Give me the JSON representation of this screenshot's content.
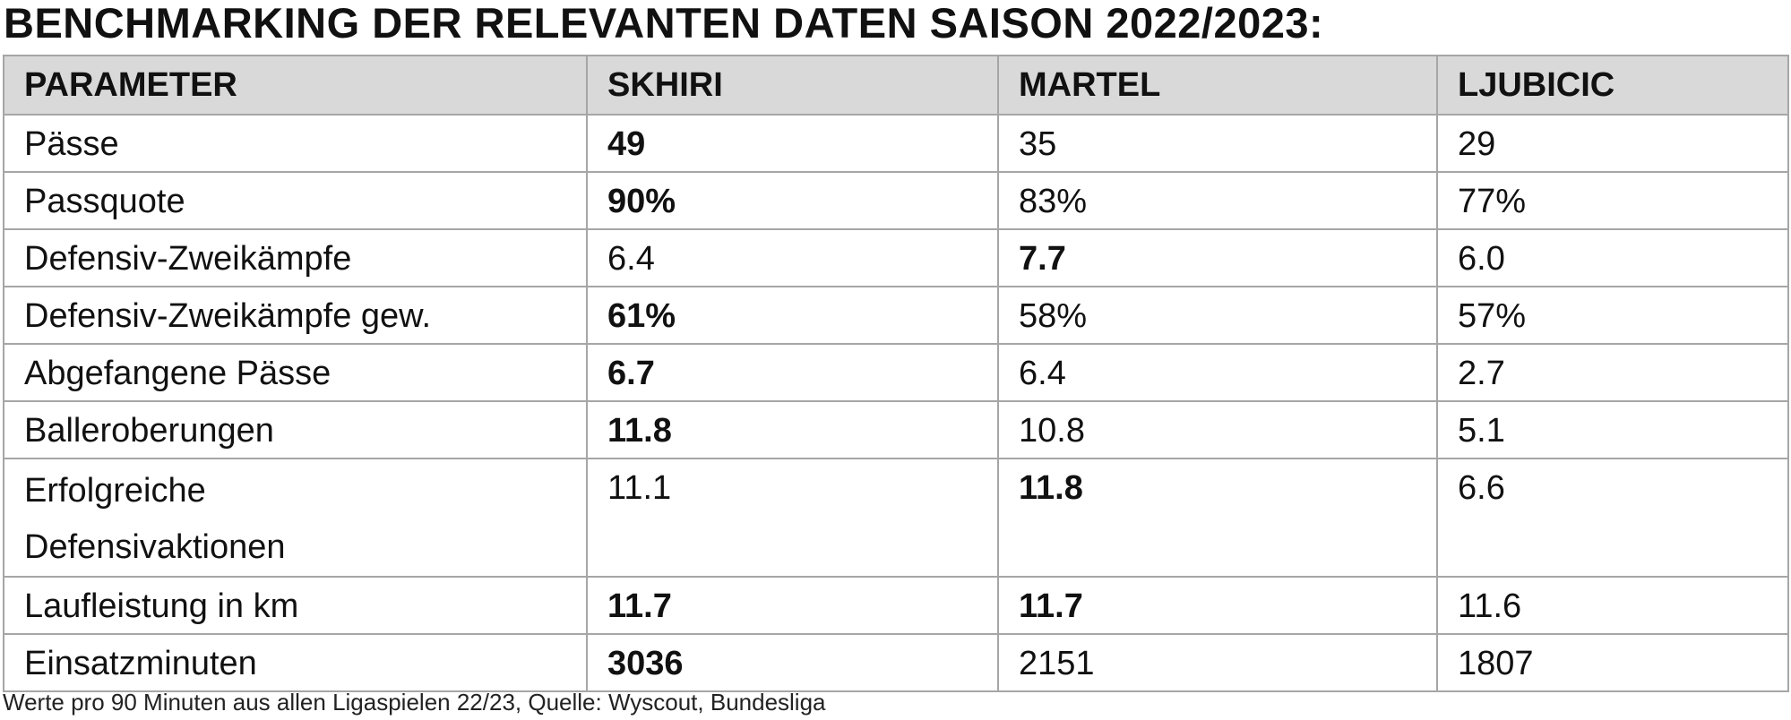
{
  "header": {
    "title": "BENCHMARKING DER RELEVANTEN DATEN SAISON 2022/2023:"
  },
  "table": {
    "columns": [
      "PARAMETER",
      "SKHIRI",
      "MARTEL",
      "LJUBICIC"
    ],
    "rows": [
      [
        "Pässe",
        "49",
        "35",
        "29"
      ],
      [
        "Passquote",
        "90%",
        "83%",
        "77%"
      ],
      [
        "Defensiv-Zweikämpfe",
        "6.4",
        "7.7",
        "6.0"
      ],
      [
        "Defensiv-Zweikämpfe gew.",
        "61%",
        "58%",
        "57%"
      ],
      [
        "Abgefangene Pässe",
        "6.7",
        "6.4",
        "2.7"
      ],
      [
        "Balleroberungen",
        "11.8",
        "10.8",
        "5.1"
      ],
      [
        "Erfolgreiche Defensivaktionen",
        "11.1",
        "11.8",
        "6.6"
      ],
      [
        "Laufleistung in km",
        "11.7",
        "11.7",
        "11.6"
      ],
      [
        "Einsatzminuten",
        "3036",
        "2151",
        "1807"
      ]
    ]
  },
  "footer": {
    "note": "Werte pro 90 Minuten aus allen Ligaspielen 22/23, Quelle: Wyscout, Bundesliga"
  }
}
